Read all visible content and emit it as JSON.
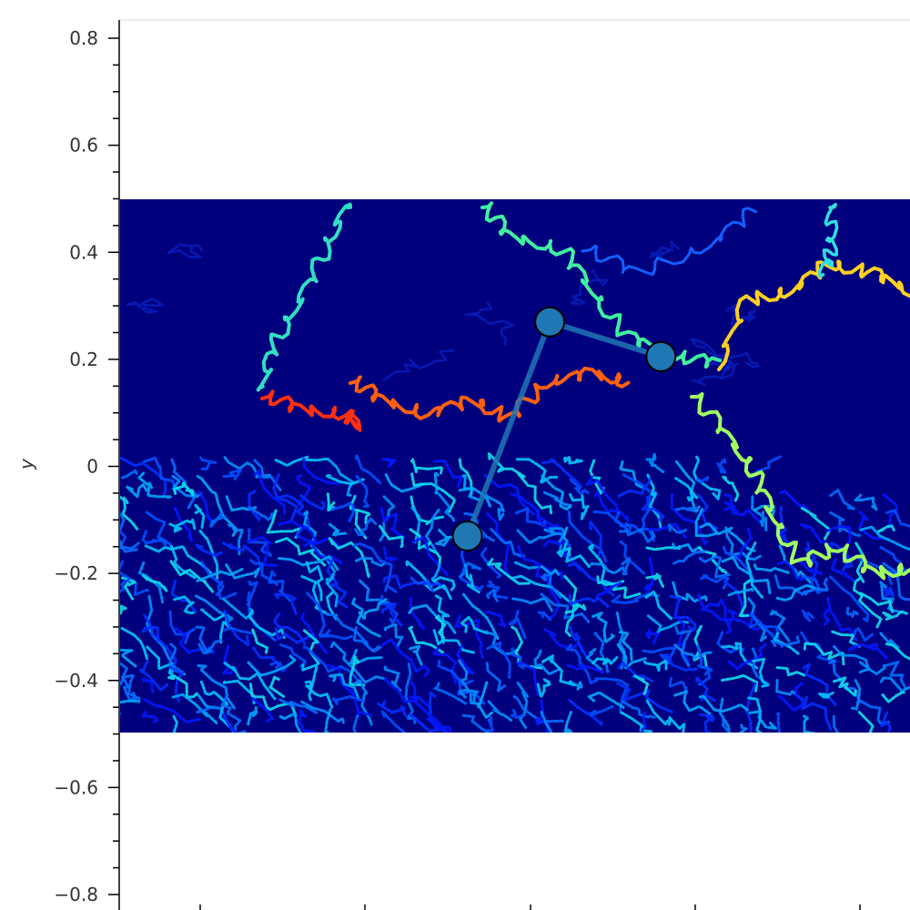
{
  "chart_data": {
    "type": "heatmap",
    "title": "",
    "xlabel": "",
    "ylabel": "y",
    "ylim": [
      -0.84,
      0.84
    ],
    "y_ticks": [
      {
        "value": 0.8,
        "label": "0.8"
      },
      {
        "value": 0.6,
        "label": "0.6"
      },
      {
        "value": 0.4,
        "label": "0.4"
      },
      {
        "value": 0.2,
        "label": "0.2"
      },
      {
        "value": 0.0,
        "label": "0"
      },
      {
        "value": -0.2,
        "label": "−0.2"
      },
      {
        "value": -0.4,
        "label": "−0.4"
      },
      {
        "value": -0.6,
        "label": "−0.6"
      },
      {
        "value": -0.8,
        "label": "−0.8"
      }
    ],
    "image_extent_y": [
      -0.5,
      0.5
    ],
    "colormap": "jet",
    "grid": false,
    "overlay_path": {
      "color": "#1f77b4",
      "points": [
        {
          "x": -0.08,
          "y": -0.13
        },
        {
          "x": 0.02,
          "y": 0.27
        },
        {
          "x": 0.155,
          "y": 0.205
        }
      ]
    }
  },
  "colors": {
    "background": "#00007f",
    "axis": "#000000",
    "tick_text": "#333333"
  }
}
